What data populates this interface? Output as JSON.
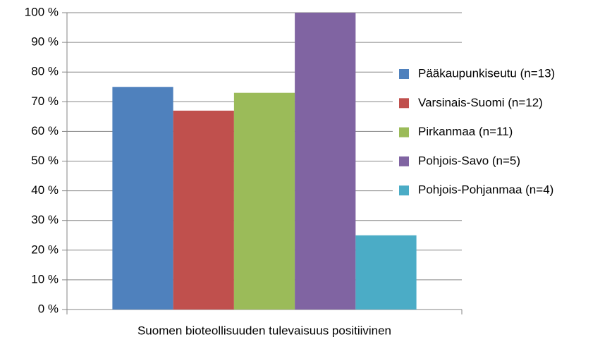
{
  "chart_data": {
    "type": "bar",
    "categories": [
      "Suomen bioteollisuuden tulevaisuus positiivinen"
    ],
    "series": [
      {
        "name": "Pääkaupunkiseutu (n=13)",
        "color": "#4f81bd",
        "values": [
          75
        ]
      },
      {
        "name": "Varsinais-Suomi (n=12)",
        "color": "#c0504d",
        "values": [
          67
        ]
      },
      {
        "name": "Pirkanmaa (n=11)",
        "color": "#9bbb59",
        "values": [
          73
        ]
      },
      {
        "name": "Pohjois-Savo (n=5)",
        "color": "#8064a2",
        "values": [
          100
        ]
      },
      {
        "name": "Pohjois-Pohjanmaa (n=4)",
        "color": "#4bacc6",
        "values": [
          25
        ]
      }
    ],
    "ylim": [
      0,
      100
    ],
    "yticks": [
      {
        "value": 0,
        "label": "0 %"
      },
      {
        "value": 10,
        "label": "10 %"
      },
      {
        "value": 20,
        "label": "20 %"
      },
      {
        "value": 30,
        "label": "30 %"
      },
      {
        "value": 40,
        "label": "40 %"
      },
      {
        "value": 50,
        "label": "50 %"
      },
      {
        "value": 60,
        "label": "60 %"
      },
      {
        "value": 70,
        "label": "70 %"
      },
      {
        "value": 80,
        "label": "80 %"
      },
      {
        "value": 90,
        "label": "90 %"
      },
      {
        "value": 100,
        "label": "100 %"
      }
    ],
    "grid": true,
    "legend": "right"
  }
}
